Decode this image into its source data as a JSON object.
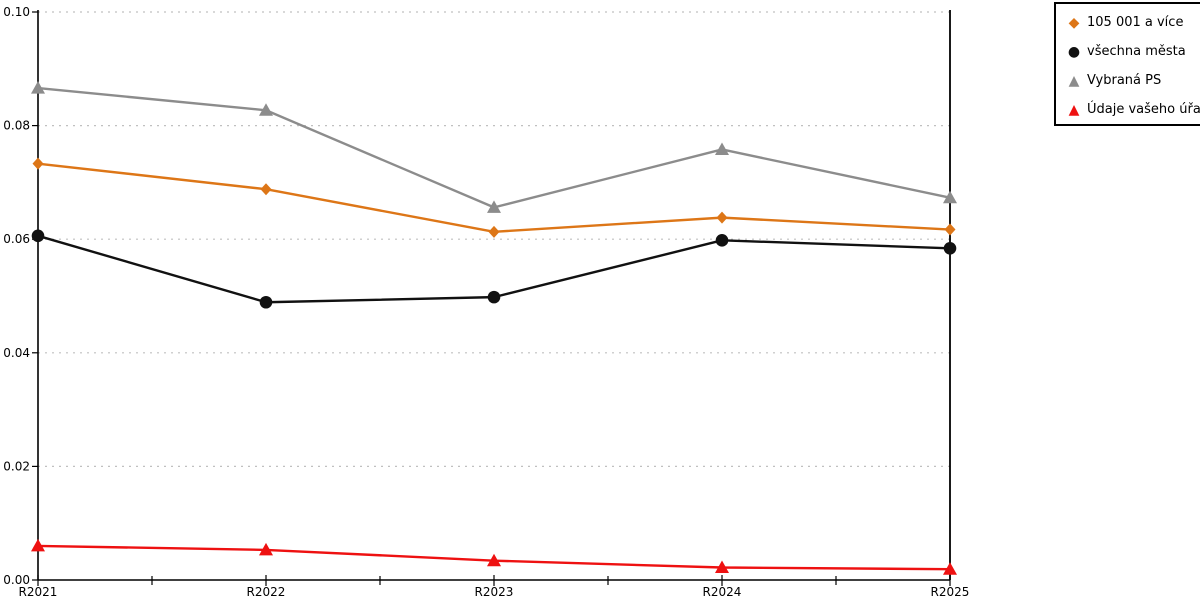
{
  "chart_data": {
    "type": "line",
    "title": "",
    "xlabel": "",
    "ylabel": "",
    "categories": [
      "R2021",
      "R2022",
      "R2023",
      "R2024",
      "R2025"
    ],
    "y_ticks": [
      "0.00",
      "0.02",
      "0.04",
      "0.06",
      "0.08",
      "0.10"
    ],
    "ylim": [
      0,
      0.1
    ],
    "grid": "horizontal-dotted",
    "legend_position": "top-right",
    "axis_color": "#000000",
    "gridline_color": "#c0c0c0",
    "series": [
      {
        "name": "105 001 a více",
        "marker": "diamond",
        "color": "#dd7617",
        "values": [
          0.0733,
          0.0688,
          0.0613,
          0.0638,
          0.0617
        ]
      },
      {
        "name": "všechna města",
        "marker": "circle",
        "color": "#111111",
        "values": [
          0.0606,
          0.0489,
          0.0498,
          0.0598,
          0.0584
        ]
      },
      {
        "name": "Vybraná PS",
        "marker": "triangle",
        "color": "#8c8c8c",
        "values": [
          0.0866,
          0.0827,
          0.0656,
          0.0758,
          0.0673
        ]
      },
      {
        "name": "Údaje vašeho úřadu",
        "marker": "triangle",
        "color": "#ee1111",
        "values": [
          0.006,
          0.0053,
          0.0034,
          0.0022,
          0.0019
        ]
      }
    ]
  }
}
